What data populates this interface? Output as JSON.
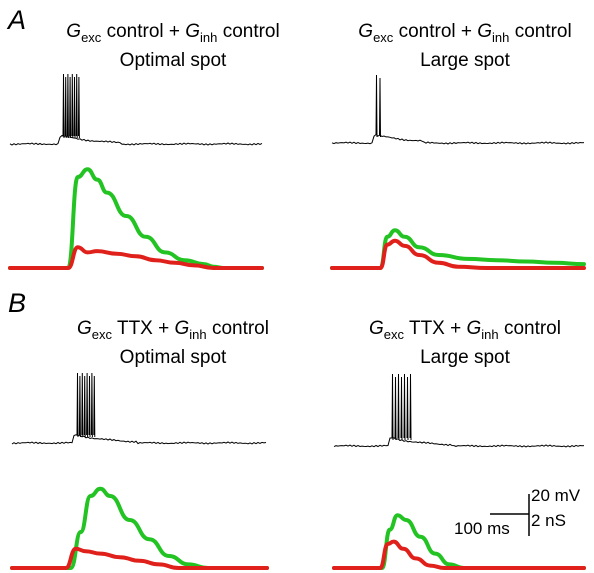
{
  "figure": {
    "panel_A_label": "A",
    "panel_B_label": "B",
    "g_symbol": "G",
    "sub_exc": "exc",
    "sub_inh": "inh",
    "plus": " + "
  },
  "panels": [
    {
      "letter": "A",
      "exc_condition": "control",
      "inh_condition": "control",
      "spot": "Optimal spot"
    },
    {
      "letter": "A",
      "exc_condition": "control",
      "inh_condition": "control",
      "spot": "Large spot"
    },
    {
      "letter": "B",
      "exc_condition": "TTX",
      "inh_condition": "control",
      "spot": "Optimal spot"
    },
    {
      "letter": "B",
      "exc_condition": "TTX",
      "inh_condition": "control",
      "spot": "Large spot"
    }
  ],
  "scale_bar": {
    "voltage_label": "20 mV",
    "conductance_label": "2 nS",
    "time_label": "100 ms"
  },
  "colors": {
    "voltage_trace": "#000000",
    "exc_conductance": "#22c322",
    "inh_conductance": "#e0201b"
  },
  "chart_data": [
    {
      "type": "line",
      "panel": "A-left",
      "title": "Gexc control + Ginh control / Optimal spot",
      "series": [
        {
          "name": "Gexc",
          "x": [
            0,
            60,
            70,
            80,
            90,
            100,
            120,
            140,
            160,
            180,
            200,
            210,
            220,
            260
          ],
          "values": [
            0,
            0,
            3.5,
            3.8,
            3.4,
            2.9,
            2.0,
            1.2,
            0.6,
            0.3,
            0.15,
            0.05,
            0,
            0
          ]
        },
        {
          "name": "Ginh",
          "x": [
            0,
            60,
            70,
            80,
            90,
            110,
            130,
            150,
            170,
            190,
            210,
            260
          ],
          "values": [
            0,
            0,
            0.8,
            0.6,
            0.65,
            0.55,
            0.45,
            0.3,
            0.2,
            0.1,
            0,
            0
          ]
        }
      ]
    },
    {
      "type": "line",
      "panel": "A-right",
      "title": "Gexc control + Ginh control / Large spot",
      "series": [
        {
          "name": "Gexc",
          "x": [
            0,
            50,
            57,
            65,
            75,
            90,
            110,
            140,
            170,
            200,
            230,
            260
          ],
          "values": [
            0,
            0,
            1.2,
            1.45,
            1.2,
            0.8,
            0.5,
            0.35,
            0.3,
            0.25,
            0.2,
            0.15
          ]
        },
        {
          "name": "Ginh",
          "x": [
            0,
            50,
            57,
            65,
            75,
            90,
            110,
            130,
            160,
            260
          ],
          "values": [
            0,
            0,
            0.9,
            1.05,
            0.85,
            0.5,
            0.2,
            0.05,
            0,
            0
          ]
        }
      ]
    },
    {
      "type": "line",
      "panel": "B-left",
      "title": "Gexc TTX + Ginh control / Optimal spot",
      "series": [
        {
          "name": "Gexc",
          "x": [
            0,
            60,
            70,
            80,
            90,
            100,
            120,
            140,
            160,
            180,
            200,
            260
          ],
          "values": [
            0,
            0,
            1.5,
            3.0,
            3.3,
            3.0,
            2.0,
            1.2,
            0.5,
            0.15,
            0,
            0
          ]
        },
        {
          "name": "Ginh",
          "x": [
            0,
            55,
            65,
            75,
            90,
            110,
            130,
            150,
            170,
            260
          ],
          "values": [
            0,
            0,
            0.8,
            0.7,
            0.6,
            0.45,
            0.3,
            0.15,
            0,
            0
          ]
        }
      ]
    },
    {
      "type": "line",
      "panel": "B-right",
      "title": "Gexc TTX + Ginh control / Large spot",
      "series": [
        {
          "name": "Gexc",
          "x": [
            0,
            50,
            58,
            66,
            75,
            90,
            105,
            120,
            135,
            260
          ],
          "values": [
            0,
            0,
            1.6,
            2.2,
            2.0,
            1.3,
            0.6,
            0.15,
            0,
            0
          ]
        },
        {
          "name": "Ginh",
          "x": [
            0,
            48,
            56,
            62,
            72,
            85,
            100,
            115,
            260
          ],
          "values": [
            0,
            0,
            1.0,
            1.1,
            0.8,
            0.4,
            0.1,
            0,
            0
          ]
        }
      ]
    }
  ]
}
